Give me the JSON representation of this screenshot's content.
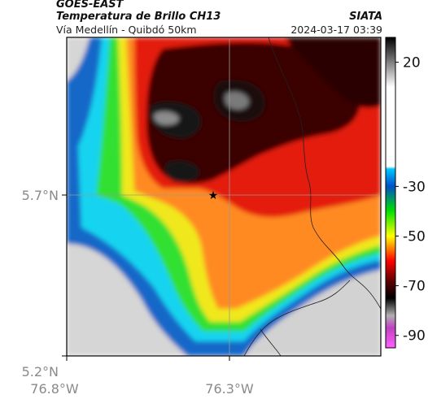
{
  "header": {
    "satellite": "GOES-EAST",
    "product": "Temperatura de Brillo CH13",
    "route": "Vía Medellín - Quibdó 50km",
    "agency": "SIATA",
    "datetime": "2024-03-17 03:39"
  },
  "map": {
    "lat_ticks": [
      "5.7°N",
      "5.2°N"
    ],
    "lon_ticks": [
      "76.8°W",
      "76.3°W"
    ],
    "lat_range": [
      5.2,
      5.9
    ],
    "lon_range": [
      -76.8,
      -76.1
    ],
    "marker": "star",
    "crosshair": true
  },
  "colorbar": {
    "labels": [
      "20",
      "-30",
      "-50",
      "-70",
      "-90"
    ],
    "values": [
      20,
      -30,
      -50,
      -70,
      -90
    ],
    "range": [
      -95,
      30
    ],
    "stops": [
      {
        "v": 30,
        "color": "#000000"
      },
      {
        "v": 10,
        "color": "#ffffff"
      },
      {
        "v": -22,
        "color": "#ffffff"
      },
      {
        "v": -23,
        "color": "#00c8ff"
      },
      {
        "v": -30,
        "color": "#0050c8"
      },
      {
        "v": -40,
        "color": "#00e000"
      },
      {
        "v": -50,
        "color": "#ffff00"
      },
      {
        "v": -55,
        "color": "#ff8000"
      },
      {
        "v": -60,
        "color": "#ff0000"
      },
      {
        "v": -68,
        "color": "#600000"
      },
      {
        "v": -75,
        "color": "#000000"
      },
      {
        "v": -82,
        "color": "#b0b0b0"
      },
      {
        "v": -87,
        "color": "#c040c0"
      },
      {
        "v": -95,
        "color": "#ff60ff"
      }
    ]
  },
  "colors": {
    "cold_core": "#1a0a0a",
    "red": "#e02010",
    "orange": "#ff8a20",
    "yellow": "#f0e020",
    "green": "#30e030",
    "cyan": "#10d8f0",
    "blue": "#1068c8",
    "clear": "#d8d8d8"
  }
}
